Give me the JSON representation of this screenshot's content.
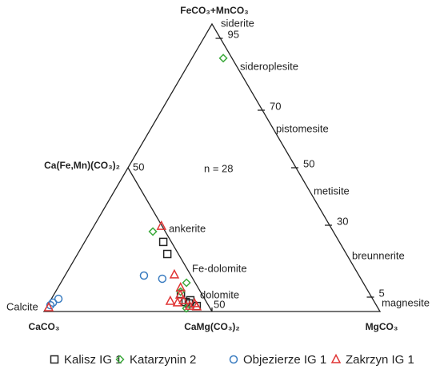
{
  "chart_data": {
    "type": "ternary",
    "apex_labels": {
      "top": "FeCO₃+MnCO₃",
      "left": "CaCO₃",
      "right": "MgCO₃",
      "bottom_mid": "CaMg(CO₃)₂",
      "left_mid": "Ca(Fe,Mn)(CO₃)₂"
    },
    "annotation": "n = 28",
    "region_labels": [
      "siderite",
      "sideroplesite",
      "pistomesite",
      "metisite",
      "breunnerite",
      "magnesite",
      "ankerite",
      "Fe-dolomite",
      "dolomite",
      "Calcite"
    ],
    "right_ticks": [
      95,
      70,
      50,
      30,
      5
    ],
    "left_ticks": [
      50
    ],
    "bottom_ticks": [
      50
    ],
    "series": [
      {
        "name": "Kalisz IG 1",
        "marker": "square",
        "color": "#222222",
        "values": [
          24.2,
          20.0,
          6.1,
          3.3,
          2.8,
          3.9,
          1.9
        ],
        "mg": [
          23.4,
          26.7,
          37.7,
          40.5,
          41.7,
          41.6,
          44.5
        ]
      },
      {
        "name": "Katarzynin 2",
        "marker": "diamond",
        "color": "#3daa3d",
        "values": [
          88.1,
          27.8,
          10.0,
          6.9,
          1.1
        ],
        "mg": [
          9.3,
          18.5,
          37.4,
          37.2,
          41.8
        ]
      },
      {
        "name": "Objezierze IG 1",
        "marker": "circle",
        "color": "#3a7cc0",
        "values": [
          4.4,
          3.1,
          2.2,
          12.5,
          11.4
        ],
        "mg": [
          2.1,
          1.1,
          0.8,
          23.5,
          29.5
        ]
      },
      {
        "name": "Zakrzyn IG 1",
        "marker": "triangle",
        "color": "#e03535",
        "values": [
          29.7,
          12.8,
          8.3,
          5.8,
          3.6,
          3.1,
          3.9,
          2.8,
          1.7,
          1.4,
          1.9
        ],
        "mg": [
          20.1,
          32.4,
          36.5,
          37.6,
          35.8,
          38.2,
          39.5,
          43.4,
          44.6,
          0.7,
          42.4
        ]
      }
    ]
  }
}
